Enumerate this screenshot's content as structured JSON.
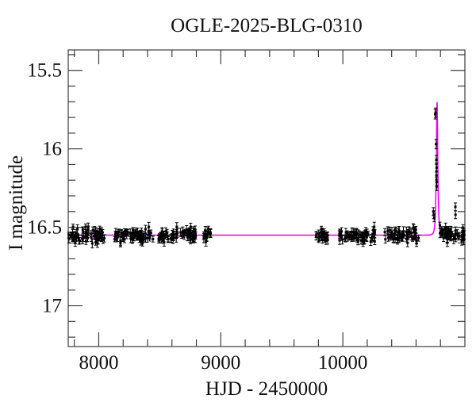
{
  "window": {
    "background": "#ffffff"
  },
  "chart_data": {
    "type": "scatter",
    "title": "OGLE-2025-BLG-0310",
    "xlabel": "HJD - 2450000",
    "ylabel": "I magnitude",
    "xlim": [
      7750,
      11000
    ],
    "ylim": [
      17.26,
      15.37
    ],
    "y_axis_inverted": true,
    "grid": false,
    "legend": false,
    "axes": {
      "x_major_ticks": [
        8000,
        9000,
        10000
      ],
      "x_major_labels": [
        "8000",
        "9000",
        "10000"
      ],
      "x_minor_step": 200,
      "y_major_ticks": [
        15.5,
        16.0,
        16.5,
        17.0
      ],
      "y_major_labels": [
        "15.5",
        "16",
        "16.5",
        "17"
      ],
      "y_minor_step": 0.1
    },
    "colors": {
      "model_curve": "#ee00ee",
      "data_points": "#000000",
      "axis": "#3c3c3c"
    },
    "model_fit": {
      "kind": "paczynski-microlensing",
      "t0": 10772,
      "tE": 10,
      "u0": 0.5,
      "baseline_I_mag": 16.55,
      "peak_I_mag": 15.7
    },
    "baseline_clusters": [
      {
        "t_start": 7752,
        "t_end": 8055,
        "n": 68
      },
      {
        "t_start": 8114,
        "t_end": 8445,
        "n": 76
      },
      {
        "t_start": 8490,
        "t_end": 8795,
        "n": 72
      },
      {
        "t_start": 8860,
        "t_end": 8925,
        "n": 15
      },
      {
        "t_start": 9776,
        "t_end": 9886,
        "n": 26
      },
      {
        "t_start": 9971,
        "t_end": 10263,
        "n": 62
      },
      {
        "t_start": 10341,
        "t_end": 10633,
        "n": 62
      },
      {
        "t_start": 10795,
        "t_end": 10996,
        "n": 48
      }
    ],
    "scatter_mag_sigma": 0.022,
    "error_bar_mag_range": [
      0.016,
      0.03
    ],
    "seed": 310,
    "peak_points": [
      {
        "t": 10757,
        "mag": 15.78,
        "err": 0.03
      },
      {
        "t": 10760,
        "mag": 15.77,
        "err": 0.03
      },
      {
        "t": 10764,
        "mag": 15.97,
        "err": 0.03
      },
      {
        "t": 10766,
        "mag": 16.07,
        "err": 0.028
      },
      {
        "t": 10768,
        "mag": 16.12,
        "err": 0.028
      },
      {
        "t": 10767,
        "mag": 16.17,
        "err": 0.028
      },
      {
        "t": 10769,
        "mag": 16.21,
        "err": 0.026
      },
      {
        "t": 10770,
        "mag": 16.24,
        "err": 0.026
      },
      {
        "t": 10742,
        "mag": 16.4,
        "err": 0.025
      },
      {
        "t": 10745,
        "mag": 16.42,
        "err": 0.025
      },
      {
        "t": 10748,
        "mag": 16.44,
        "err": 0.025
      },
      {
        "t": 10922,
        "mag": 16.37,
        "err": 0.025
      },
      {
        "t": 10923,
        "mag": 16.42,
        "err": 0.025
      }
    ]
  }
}
